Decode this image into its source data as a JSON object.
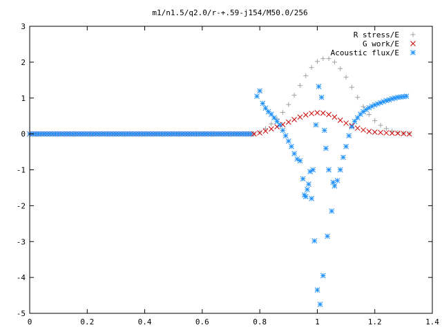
{
  "chart_data": {
    "type": "scatter",
    "title": "m1/n1.5/q2.0/r-+.59-j154/M50.0/256",
    "xlabel": "",
    "ylabel": "",
    "xlim": [
      0,
      1.4
    ],
    "ylim": [
      -5,
      3
    ],
    "xticks": [
      "0",
      "0.2",
      "0.4",
      "0.6",
      "0.8",
      "1",
      "1.2",
      "1.4"
    ],
    "yticks": [
      "3",
      "2",
      "1",
      "0",
      "-1",
      "-2",
      "-3",
      "-4",
      "-5"
    ],
    "grid": false,
    "legend_position": "top-right",
    "series": [
      {
        "name": "R stress/E",
        "marker": "plus",
        "color": "#a0a0a0",
        "x": [
          0.78,
          0.8,
          0.82,
          0.84,
          0.86,
          0.88,
          0.9,
          0.92,
          0.94,
          0.96,
          0.98,
          1.0,
          1.02,
          1.04,
          1.06,
          1.08,
          1.1,
          1.12,
          1.14,
          1.16,
          1.18,
          1.2,
          1.22,
          1.24,
          1.26,
          1.28,
          1.3,
          1.32
        ],
        "y": [
          0.0,
          0.05,
          0.15,
          0.28,
          0.42,
          0.6,
          0.82,
          1.08,
          1.35,
          1.62,
          1.85,
          2.02,
          2.1,
          2.1,
          2.0,
          1.82,
          1.58,
          1.3,
          1.02,
          0.76,
          0.54,
          0.37,
          0.24,
          0.15,
          0.08,
          0.04,
          0.02,
          0.01
        ]
      },
      {
        "name": "G work/E",
        "marker": "cross",
        "color": "#cc0000",
        "x": [
          0.78,
          0.8,
          0.82,
          0.84,
          0.86,
          0.88,
          0.9,
          0.92,
          0.94,
          0.96,
          0.98,
          1.0,
          1.02,
          1.04,
          1.06,
          1.08,
          1.1,
          1.12,
          1.14,
          1.16,
          1.18,
          1.2,
          1.22,
          1.24,
          1.26,
          1.28,
          1.3,
          1.32
        ],
        "y": [
          0.0,
          0.03,
          0.08,
          0.14,
          0.2,
          0.26,
          0.33,
          0.4,
          0.47,
          0.53,
          0.57,
          0.59,
          0.58,
          0.54,
          0.47,
          0.38,
          0.3,
          0.23,
          0.16,
          0.11,
          0.07,
          0.05,
          0.04,
          0.03,
          0.02,
          0.02,
          0.01,
          0.0
        ]
      },
      {
        "name": "Acoustic flux/E",
        "marker": "star",
        "color": "#1e90ff",
        "x": [
          0.79,
          0.8,
          0.81,
          0.82,
          0.83,
          0.84,
          0.85,
          0.86,
          0.87,
          0.88,
          0.89,
          0.9,
          0.91,
          0.92,
          0.93,
          0.94,
          0.95,
          0.955,
          0.96,
          0.965,
          0.97,
          0.975,
          0.98,
          0.985,
          0.99,
          0.995,
          1.0,
          1.005,
          1.01,
          1.015,
          1.02,
          1.025,
          1.03,
          1.035,
          1.04,
          1.05,
          1.055,
          1.06,
          1.07,
          1.08,
          1.09,
          1.1,
          1.11,
          1.12,
          1.13,
          1.14,
          1.15,
          1.16,
          1.17,
          1.18,
          1.19,
          1.2,
          1.21,
          1.22,
          1.23,
          1.24,
          1.25,
          1.26,
          1.27,
          1.28,
          1.29,
          1.3,
          1.31
        ],
        "y": [
          1.05,
          1.2,
          0.85,
          0.72,
          0.62,
          0.55,
          0.45,
          0.35,
          0.25,
          0.1,
          -0.05,
          -0.2,
          -0.35,
          -0.55,
          -0.7,
          -0.75,
          -1.25,
          -1.7,
          -1.75,
          -1.55,
          -1.4,
          -1.05,
          -1.8,
          -1.0,
          -2.98,
          0.25,
          -4.35,
          1.32,
          -4.75,
          1.02,
          -3.95,
          0.1,
          -0.4,
          -2.85,
          -1.0,
          -2.15,
          -1.35,
          -1.45,
          -1.3,
          -1.0,
          -0.65,
          -0.35,
          -0.05,
          0.2,
          0.35,
          0.45,
          0.55,
          0.62,
          0.68,
          0.73,
          0.77,
          0.81,
          0.84,
          0.87,
          0.9,
          0.93,
          0.95,
          0.98,
          1.0,
          1.02,
          1.03,
          1.04,
          1.05
        ]
      }
    ]
  }
}
